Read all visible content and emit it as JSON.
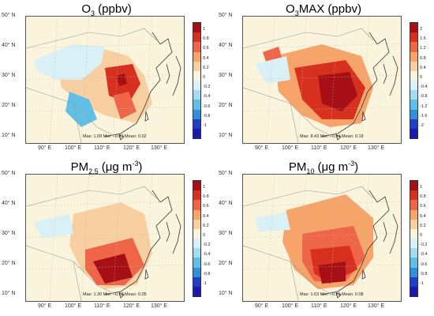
{
  "panels": [
    {
      "title_base": "O",
      "title_sub": "3",
      "title_mid": "",
      "title_sup": "",
      "title_end": " (ppbv)",
      "stats": "Max: 1.09  Min: −0.87  Mean: 0.02",
      "colorbar_labels": [
        "1",
        "0.8",
        "0.6",
        "0.4",
        "0.2",
        "0",
        "-0.2",
        "-0.4",
        "-0.6",
        "-0.8",
        "-1"
      ]
    },
    {
      "title_base": "O",
      "title_sub": "3",
      "title_mid": "MAX",
      "title_sup": "",
      "title_end": " (ppbv)",
      "stats": "Max: 8.43  Min: −0.54  Mean: 0.19",
      "colorbar_labels": [
        "2",
        "1.6",
        "1.2",
        "0.8",
        "0.4",
        "0",
        "-0.4",
        "-0.8",
        "-1.2",
        "-1.6",
        "-2"
      ]
    },
    {
      "title_base": "PM",
      "title_sub": "2.5",
      "title_mid": " (μg m",
      "title_sup": "-3",
      "title_end": ")",
      "stats": "Max: 1.30  Min: −0.13  Mean: 0.05",
      "colorbar_labels": [
        "1",
        "0.8",
        "0.6",
        "0.4",
        "0.2",
        "0",
        "-0.2",
        "-0.4",
        "-0.6",
        "-0.8",
        "-1"
      ]
    },
    {
      "title_base": "PM",
      "title_sub": "10",
      "title_mid": " (μg m",
      "title_sup": "-3",
      "title_end": ")",
      "stats": "Max: 1.63  Min: −0.25  Mean: 0.08",
      "colorbar_labels": [
        "1",
        "0.8",
        "0.6",
        "0.4",
        "0.2",
        "0",
        "-0.2",
        "-0.4",
        "-0.6",
        "-0.8",
        "-1"
      ]
    }
  ],
  "lat_labels": [
    "50° N",
    "40° N",
    "30° N",
    "20° N",
    "10° N"
  ],
  "lon_labels": [
    "90° E",
    "100° E",
    "110° E",
    "120° E",
    "130° E"
  ],
  "colors": {
    "scale": [
      "#a50f15",
      "#d7301f",
      "#ef6548",
      "#f6a46a",
      "#f8cfa0",
      "#fbf4dd",
      "#d9f0f7",
      "#a3dcef",
      "#5fbfe6",
      "#2f8fd8",
      "#1f3fc8",
      "#1a1ab0"
    ],
    "land_bg": "#fbf4dd",
    "coast": "#333333",
    "border": "#999999"
  }
}
